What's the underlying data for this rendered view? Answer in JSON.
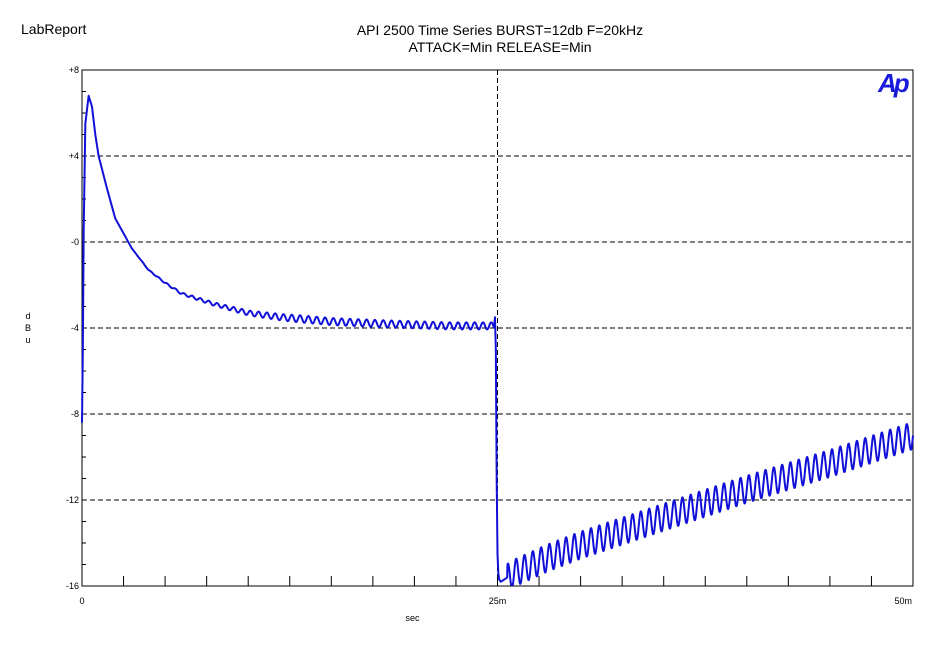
{
  "header": {
    "brand": "LabReport",
    "title_line1": "API 2500 Time Series BURST=12db F=20kHz",
    "title_line2": "ATTACK=Min RELEASE=Min",
    "logo_text": "Ap"
  },
  "chart_data": {
    "type": "line",
    "title": "API 2500 Time Series BURST=12db F=20kHz ATTACK=Min RELEASE=Min",
    "xlabel": "sec",
    "ylabel": "dBu",
    "xlim": [
      0,
      0.05
    ],
    "ylim": [
      -16,
      8
    ],
    "x_ticks": [
      {
        "value": 0,
        "label": "0"
      },
      {
        "value": 0.025,
        "label": "25m"
      },
      {
        "value": 0.05,
        "label": "50m"
      }
    ],
    "y_ticks": [
      {
        "value": 8,
        "label": "+8"
      },
      {
        "value": 4,
        "label": "+4"
      },
      {
        "value": 0,
        "label": "-0"
      },
      {
        "value": -4,
        "label": "-4"
      },
      {
        "value": -8,
        "label": "-8"
      },
      {
        "value": -12,
        "label": "-12"
      },
      {
        "value": -16,
        "label": "-16"
      }
    ],
    "grid": true,
    "line_color": "#1010d8",
    "series": [
      {
        "name": "",
        "ripple_amplitude_db": 0.3,
        "ripple_period_s": 0.0005,
        "envelope": {
          "x": [
            0,
            5e-05,
            0.0001,
            0.0002,
            0.0004,
            0.0006,
            0.0008,
            0.001,
            0.0015,
            0.002,
            0.003,
            0.004,
            0.005,
            0.006,
            0.008,
            0.01,
            0.012,
            0.015,
            0.018,
            0.02,
            0.022,
            0.0248,
            0.02485,
            0.0249,
            0.02495,
            0.025,
            0.02505,
            0.0251,
            0.0252,
            0.0254,
            0.0256,
            0.026,
            0.028,
            0.03,
            0.035,
            0.04,
            0.045,
            0.05
          ],
          "y": [
            -8.4,
            -5,
            0.5,
            5.5,
            6.8,
            6.3,
            5,
            4,
            2.5,
            1.1,
            -0.3,
            -1.3,
            -1.9,
            -2.4,
            -2.9,
            -3.3,
            -3.5,
            -3.7,
            -3.8,
            -3.85,
            -3.9,
            -3.9,
            -3.5,
            -5,
            -11,
            -14.5,
            -15.4,
            -15.7,
            -15.8,
            -15.7,
            -15.6,
            -15.4,
            -14.7,
            -14.1,
            -12.8,
            -11.5,
            -10.3,
            -9
          ]
        }
      }
    ]
  }
}
